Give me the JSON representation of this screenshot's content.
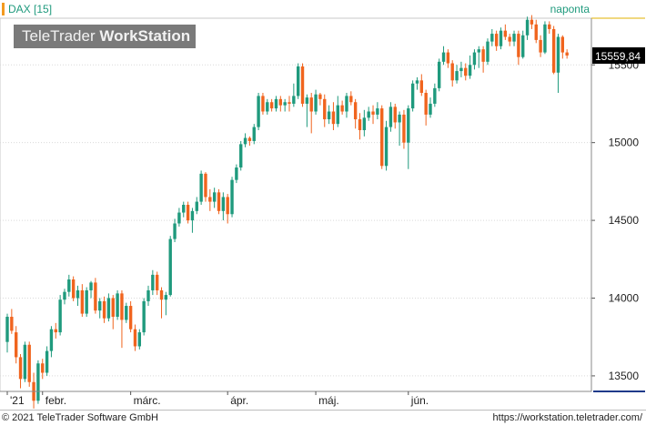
{
  "header": {
    "instrument": "DAX [15]",
    "interval": "naponta",
    "logo_regular": "TeleTrader ",
    "logo_bold": "WorkStation"
  },
  "colors": {
    "up": "#1f9a7d",
    "down": "#f0641e",
    "grid": "#d9d9d9",
    "price_box": "#000000",
    "accent_axis": "#1f3a8a"
  },
  "footer": {
    "copyright": "© 2021 TeleTrader Software GmbH",
    "url": "https://workstation.teletrader.com/"
  },
  "chart_data": {
    "type": "candlestick",
    "y_ticks": [
      13500,
      14000,
      14500,
      15000,
      15500
    ],
    "y_range": [
      13400,
      15800
    ],
    "x_labels": [
      {
        "label": "'21",
        "index": 0
      },
      {
        "label": "febr.",
        "index": 8
      },
      {
        "label": "márc.",
        "index": 28
      },
      {
        "label": "ápr.",
        "index": 50
      },
      {
        "label": "máj.",
        "index": 70
      },
      {
        "label": "jún.",
        "index": 91
      }
    ],
    "last_price": "15559,84",
    "candles": [
      [
        13718,
        13880,
        13650,
        13900
      ],
      [
        13880,
        13790,
        13770,
        13930
      ],
      [
        13780,
        13620,
        13580,
        13820
      ],
      [
        13620,
        13480,
        13420,
        13640
      ],
      [
        13480,
        13700,
        13460,
        13720
      ],
      [
        13700,
        13460,
        13430,
        13720
      ],
      [
        13460,
        13340,
        13290,
        13520
      ],
      [
        13340,
        13580,
        13320,
        13600
      ],
      [
        13580,
        13520,
        13480,
        13610
      ],
      [
        13520,
        13660,
        13500,
        13690
      ],
      [
        13660,
        13800,
        13620,
        13820
      ],
      [
        13800,
        13780,
        13740,
        13840
      ],
      [
        13780,
        13990,
        13760,
        14020
      ],
      [
        13990,
        14040,
        13960,
        14060
      ],
      [
        14040,
        14120,
        14010,
        14150
      ],
      [
        14120,
        14000,
        13980,
        14140
      ],
      [
        14000,
        14050,
        13950,
        14080
      ],
      [
        14050,
        13900,
        13880,
        14090
      ],
      [
        13900,
        14050,
        13880,
        14070
      ],
      [
        14050,
        14100,
        14000,
        14110
      ],
      [
        14100,
        13920,
        13900,
        14130
      ],
      [
        13920,
        13980,
        13870,
        14000
      ],
      [
        13980,
        13870,
        13840,
        14010
      ],
      [
        13870,
        14000,
        13850,
        14030
      ],
      [
        14000,
        13880,
        13800,
        14020
      ],
      [
        13880,
        14030,
        13860,
        14050
      ],
      [
        14030,
        13860,
        13680,
        14050
      ],
      [
        13860,
        13950,
        13840,
        13970
      ],
      [
        13950,
        13800,
        13780,
        13980
      ],
      [
        13800,
        13690,
        13660,
        13830
      ],
      [
        13690,
        13780,
        13670,
        13800
      ],
      [
        13780,
        13980,
        13760,
        14000
      ],
      [
        13980,
        14050,
        13950,
        14080
      ],
      [
        14050,
        14150,
        14020,
        14180
      ],
      [
        14150,
        14050,
        14020,
        14170
      ],
      [
        14050,
        13990,
        13870,
        14070
      ],
      [
        13990,
        14020,
        13890,
        14040
      ],
      [
        14020,
        14380,
        14010,
        14400
      ],
      [
        14380,
        14480,
        14360,
        14510
      ],
      [
        14480,
        14550,
        14460,
        14580
      ],
      [
        14550,
        14600,
        14520,
        14620
      ],
      [
        14600,
        14500,
        14480,
        14620
      ],
      [
        14500,
        14560,
        14420,
        14580
      ],
      [
        14560,
        14620,
        14540,
        14650
      ],
      [
        14620,
        14800,
        14600,
        14820
      ],
      [
        14800,
        14650,
        14620,
        14810
      ],
      [
        14650,
        14620,
        14560,
        14700
      ],
      [
        14620,
        14680,
        14580,
        14710
      ],
      [
        14680,
        14560,
        14540,
        14700
      ],
      [
        14560,
        14650,
        14500,
        14680
      ],
      [
        14650,
        14540,
        14480,
        14670
      ],
      [
        14540,
        14760,
        14520,
        14780
      ],
      [
        14760,
        14840,
        14740,
        14860
      ],
      [
        14840,
        14990,
        14820,
        15010
      ],
      [
        14990,
        15030,
        14970,
        15060
      ],
      [
        15030,
        15010,
        14980,
        15040
      ],
      [
        15010,
        15100,
        14990,
        15120
      ],
      [
        15100,
        15300,
        15080,
        15320
      ],
      [
        15300,
        15200,
        15180,
        15320
      ],
      [
        15200,
        15260,
        15180,
        15280
      ],
      [
        15260,
        15220,
        15200,
        15280
      ],
      [
        15220,
        15280,
        15200,
        15300
      ],
      [
        15280,
        15240,
        15200,
        15300
      ],
      [
        15240,
        15260,
        15200,
        15280
      ],
      [
        15260,
        15250,
        15200,
        15300
      ],
      [
        15250,
        15300,
        15230,
        15380
      ],
      [
        15300,
        15490,
        15280,
        15510
      ],
      [
        15490,
        15250,
        15230,
        15510
      ],
      [
        15250,
        15290,
        15100,
        15310
      ],
      [
        15290,
        15200,
        15060,
        15320
      ],
      [
        15200,
        15310,
        15180,
        15340
      ],
      [
        15310,
        15280,
        15240,
        15320
      ],
      [
        15280,
        15150,
        15100,
        15310
      ],
      [
        15150,
        15200,
        15120,
        15240
      ],
      [
        15200,
        15120,
        15080,
        15260
      ],
      [
        15120,
        15240,
        15100,
        15300
      ],
      [
        15240,
        15200,
        15180,
        15270
      ],
      [
        15200,
        15300,
        15160,
        15320
      ],
      [
        15300,
        15260,
        15240,
        15330
      ],
      [
        15260,
        15150,
        15090,
        15280
      ],
      [
        15150,
        15080,
        15020,
        15190
      ],
      [
        15080,
        15160,
        15040,
        15210
      ],
      [
        15160,
        15200,
        15140,
        15230
      ],
      [
        15200,
        15180,
        15120,
        15240
      ],
      [
        15180,
        15220,
        15150,
        15260
      ],
      [
        15220,
        14850,
        14830,
        15240
      ],
      [
        14850,
        15100,
        14820,
        15140
      ],
      [
        15100,
        15230,
        15070,
        15260
      ],
      [
        15230,
        15130,
        15090,
        15250
      ],
      [
        15130,
        15180,
        14980,
        15200
      ],
      [
        15180,
        15000,
        14960,
        15210
      ],
      [
        15000,
        15220,
        14830,
        15240
      ],
      [
        15220,
        15380,
        15200,
        15400
      ],
      [
        15380,
        15400,
        15340,
        15420
      ],
      [
        15400,
        15320,
        15300,
        15440
      ],
      [
        15320,
        15180,
        15110,
        15340
      ],
      [
        15180,
        15250,
        15160,
        15290
      ],
      [
        15250,
        15350,
        15230,
        15380
      ],
      [
        15350,
        15520,
        15330,
        15540
      ],
      [
        15520,
        15580,
        15500,
        15620
      ],
      [
        15580,
        15510,
        15480,
        15600
      ],
      [
        15510,
        15400,
        15360,
        15530
      ],
      [
        15400,
        15460,
        15380,
        15500
      ],
      [
        15460,
        15480,
        15420,
        15520
      ],
      [
        15480,
        15430,
        15400,
        15510
      ],
      [
        15430,
        15500,
        15410,
        15560
      ],
      [
        15500,
        15580,
        15470,
        15600
      ],
      [
        15580,
        15600,
        15480,
        15620
      ],
      [
        15600,
        15520,
        15450,
        15620
      ],
      [
        15520,
        15650,
        15500,
        15670
      ],
      [
        15650,
        15700,
        15620,
        15730
      ],
      [
        15700,
        15620,
        15590,
        15720
      ],
      [
        15620,
        15720,
        15600,
        15740
      ],
      [
        15720,
        15680,
        15660,
        15760
      ],
      [
        15680,
        15650,
        15620,
        15700
      ],
      [
        15650,
        15700,
        15620,
        15720
      ],
      [
        15700,
        15550,
        15500,
        15720
      ],
      [
        15550,
        15690,
        15540,
        15720
      ],
      [
        15690,
        15790,
        15660,
        15810
      ],
      [
        15790,
        15760,
        15730,
        15820
      ],
      [
        15760,
        15660,
        15640,
        15790
      ],
      [
        15660,
        15580,
        15550,
        15690
      ],
      [
        15580,
        15760,
        15570,
        15780
      ],
      [
        15760,
        15730,
        15700,
        15780
      ],
      [
        15730,
        15450,
        15440,
        15750
      ],
      [
        15450,
        15680,
        15320,
        15700
      ],
      [
        15680,
        15580,
        15540,
        15690
      ],
      [
        15580,
        15560,
        15540,
        15600
      ]
    ]
  }
}
